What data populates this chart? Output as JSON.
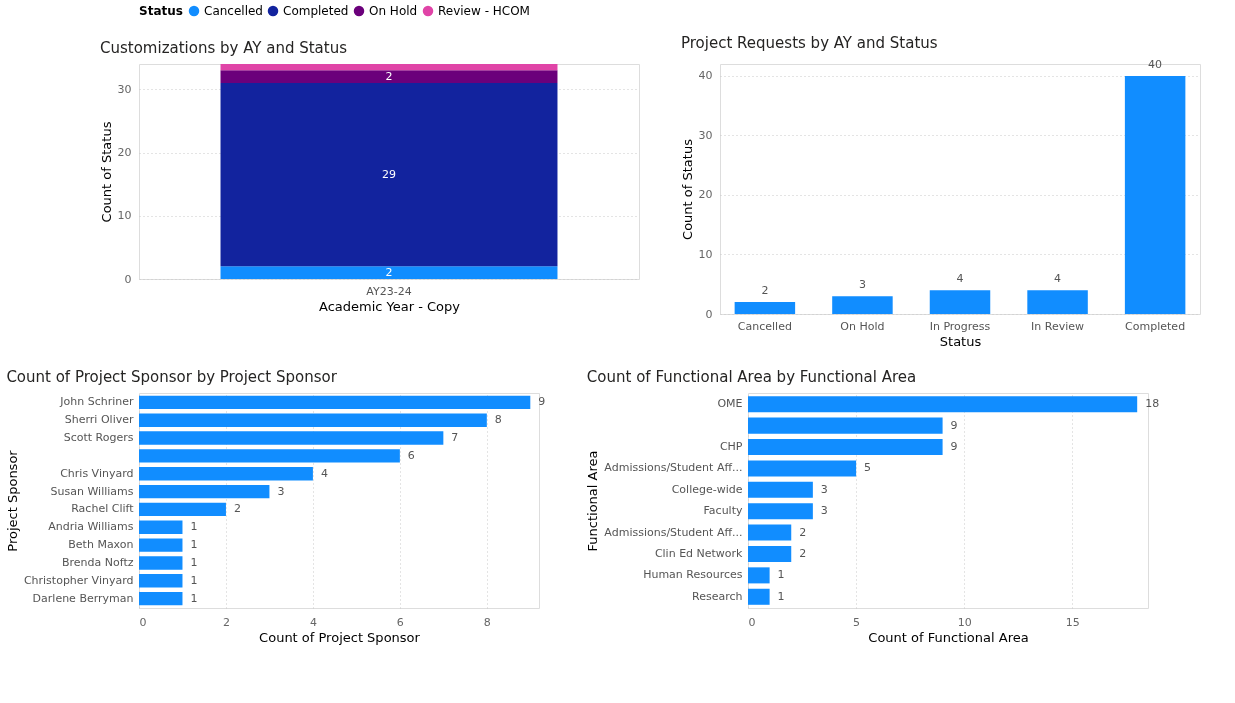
{
  "chart_data": [
    {
      "type": "bar",
      "title": "Customizations by AY and Status",
      "xlabel": "Academic Year - Copy",
      "ylabel": "Count of Status",
      "legend_title": "Status",
      "legend": "top left",
      "stacked": true,
      "categories": [
        "AY23-24"
      ],
      "ylim": [
        0,
        34
      ],
      "yticks": [
        0,
        10,
        20,
        30
      ],
      "grid": "y",
      "series": [
        {
          "name": "Cancelled",
          "color": "#118dff",
          "values": [
            2
          ],
          "value_labels": [
            "2"
          ]
        },
        {
          "name": "Completed",
          "color": "#12239e",
          "values": [
            29
          ],
          "value_labels": [
            "29"
          ]
        },
        {
          "name": "On Hold",
          "color": "#6b007b",
          "values": [
            2
          ],
          "value_labels": [
            "2"
          ]
        },
        {
          "name": "Review - HCOM",
          "color": "#e044a7",
          "values": [
            1
          ],
          "value_labels": [
            null
          ]
        }
      ]
    },
    {
      "type": "bar",
      "title": "Project Requests by AY and Status",
      "xlabel": "Status",
      "ylabel": "Count of Status",
      "categories": [
        "Cancelled",
        "On Hold",
        "In Progress",
        "In Review",
        "Completed"
      ],
      "values": [
        2,
        3,
        4,
        4,
        40
      ],
      "color": "#118dff",
      "ylim": [
        0,
        42
      ],
      "yticks": [
        0,
        10,
        20,
        30,
        40
      ],
      "grid": "y",
      "data_labels": true
    },
    {
      "type": "bar",
      "title": "Count of Project Sponsor by Project Sponsor",
      "xlabel": "Count of Project Sponsor",
      "ylabel": "Project Sponsor",
      "orientation": "horizontal",
      "categories": [
        "John Schriner",
        "Sherri Oliver",
        "Scott Rogers",
        null,
        "Chris Vinyard",
        "Susan Williams",
        "Rachel Clift",
        "Andria Williams",
        "Beth Maxon",
        "Brenda Noftz",
        "Christopher Vinyard",
        "Darlene Berryman"
      ],
      "values": [
        9,
        8,
        7,
        6,
        4,
        3,
        2,
        1,
        1,
        1,
        1,
        1
      ],
      "color": "#118dff",
      "xlim": [
        0,
        9.2
      ],
      "xticks": [
        0,
        2,
        4,
        6,
        8
      ],
      "grid": "x",
      "data_labels": true
    },
    {
      "type": "bar",
      "title": "Count of Functional Area by Functional Area",
      "xlabel": "Count of Functional Area",
      "ylabel": "Functional Area",
      "orientation": "horizontal",
      "categories": [
        "OME",
        null,
        "CHP",
        "Admissions/Student Aff...",
        "College-wide",
        "Faculty",
        "Admissions/Student Aff...",
        "Clin Ed Network",
        "Human Resources",
        "Research"
      ],
      "values": [
        18,
        9,
        9,
        5,
        3,
        3,
        2,
        2,
        1,
        1
      ],
      "color": "#118dff",
      "xlim": [
        0,
        18.5
      ],
      "xticks": [
        0,
        5,
        10,
        15
      ],
      "grid": "x",
      "data_labels": true
    }
  ]
}
